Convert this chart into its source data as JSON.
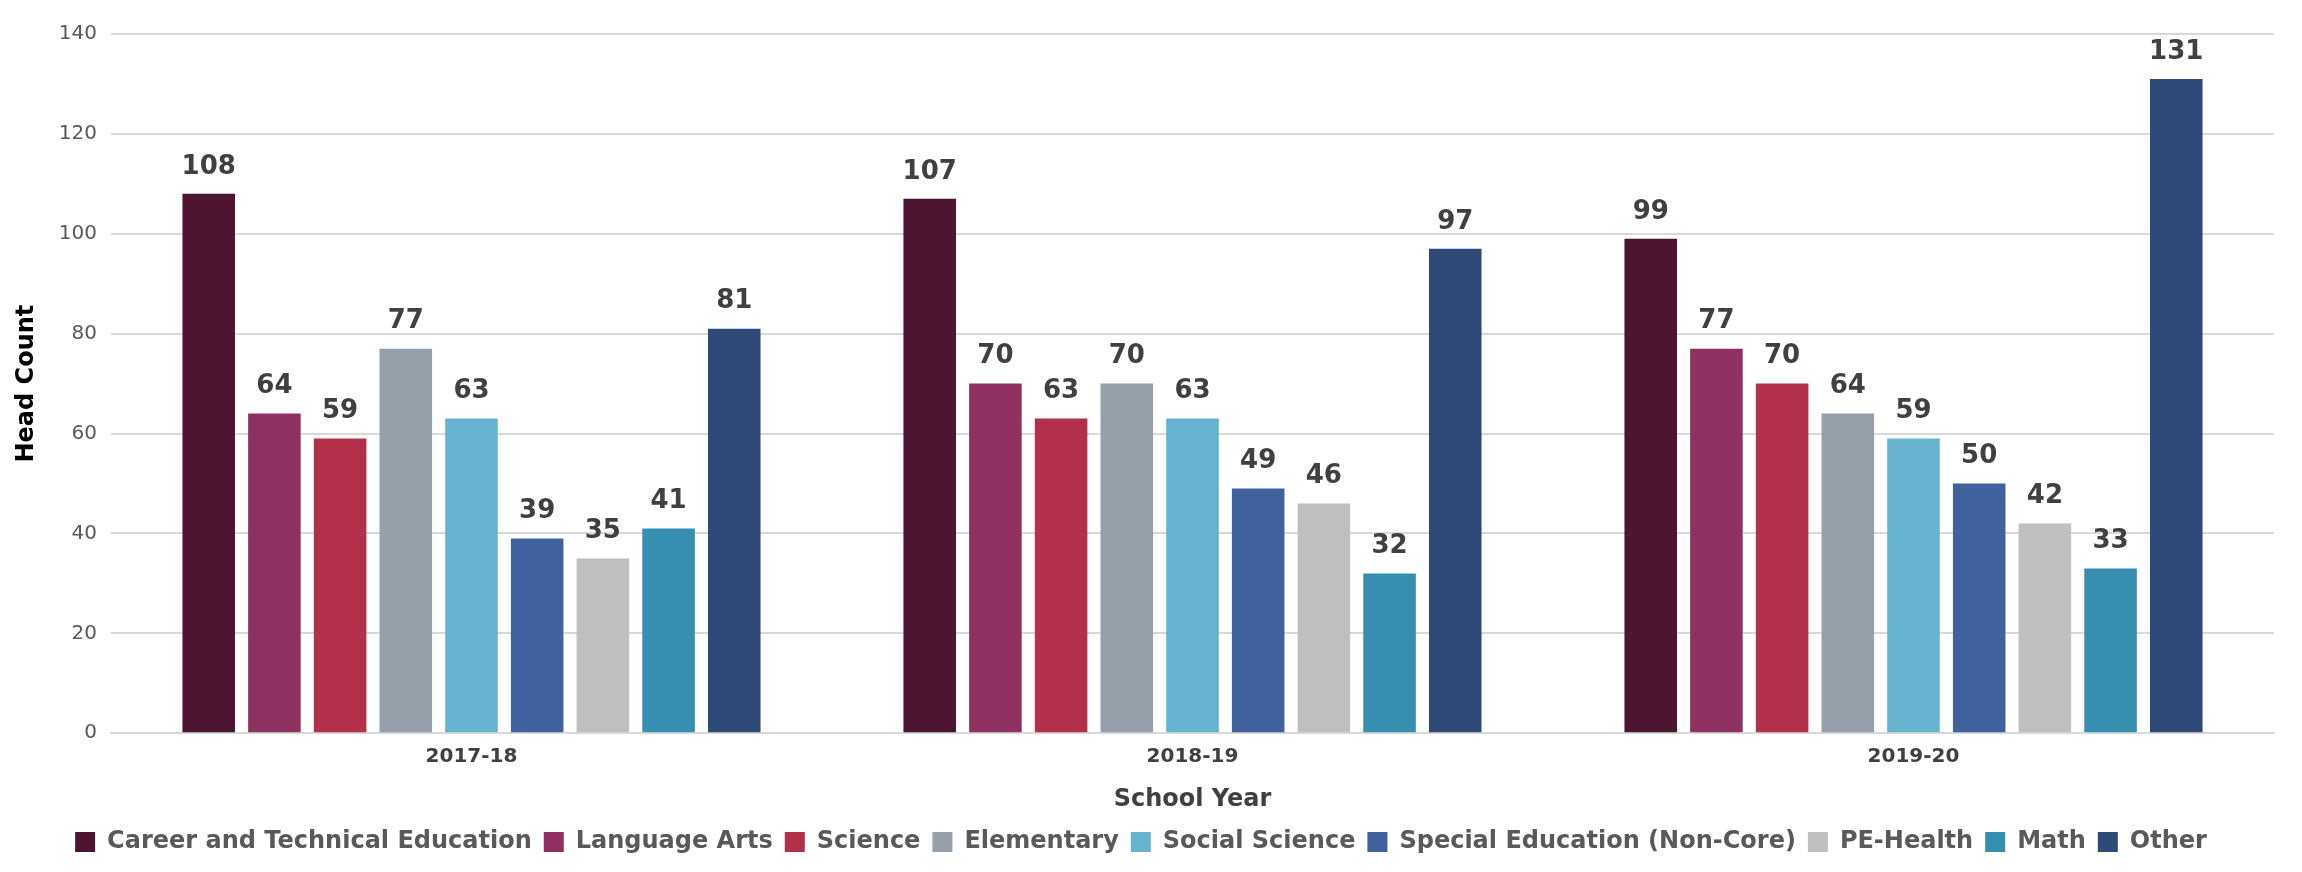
{
  "chart_data": {
    "type": "bar",
    "xlabel": "School Year",
    "ylabel": "Head Count",
    "categories": [
      "2017-18",
      "2018-19",
      "2019-20"
    ],
    "series": [
      {
        "name": "Career and Technical Education",
        "color": "#4e1532",
        "values": [
          108,
          107,
          99
        ]
      },
      {
        "name": "Language Arts",
        "color": "#8e3060",
        "values": [
          64,
          70,
          77
        ]
      },
      {
        "name": "Science",
        "color": "#b3304a",
        "values": [
          59,
          63,
          70
        ]
      },
      {
        "name": "Elementary",
        "color": "#96a0aa",
        "values": [
          77,
          70,
          64
        ]
      },
      {
        "name": "Social Science",
        "color": "#66b3d0",
        "values": [
          63,
          63,
          59
        ]
      },
      {
        "name": "Special Education (Non-Core)",
        "color": "#41609e",
        "values": [
          39,
          49,
          50
        ]
      },
      {
        "name": "PE-Health",
        "color": "#bfbfbf",
        "values": [
          35,
          46,
          42
        ]
      },
      {
        "name": "Math",
        "color": "#368fb0",
        "values": [
          41,
          32,
          33
        ]
      },
      {
        "name": "Other",
        "color": "#2f4a77",
        "values": [
          81,
          97,
          131
        ]
      }
    ],
    "ylim": [
      0,
      140
    ],
    "yticks": [
      0,
      20,
      40,
      60,
      80,
      100,
      120,
      140
    ],
    "grid": "y",
    "legend": "bottom",
    "data_labels": true
  }
}
